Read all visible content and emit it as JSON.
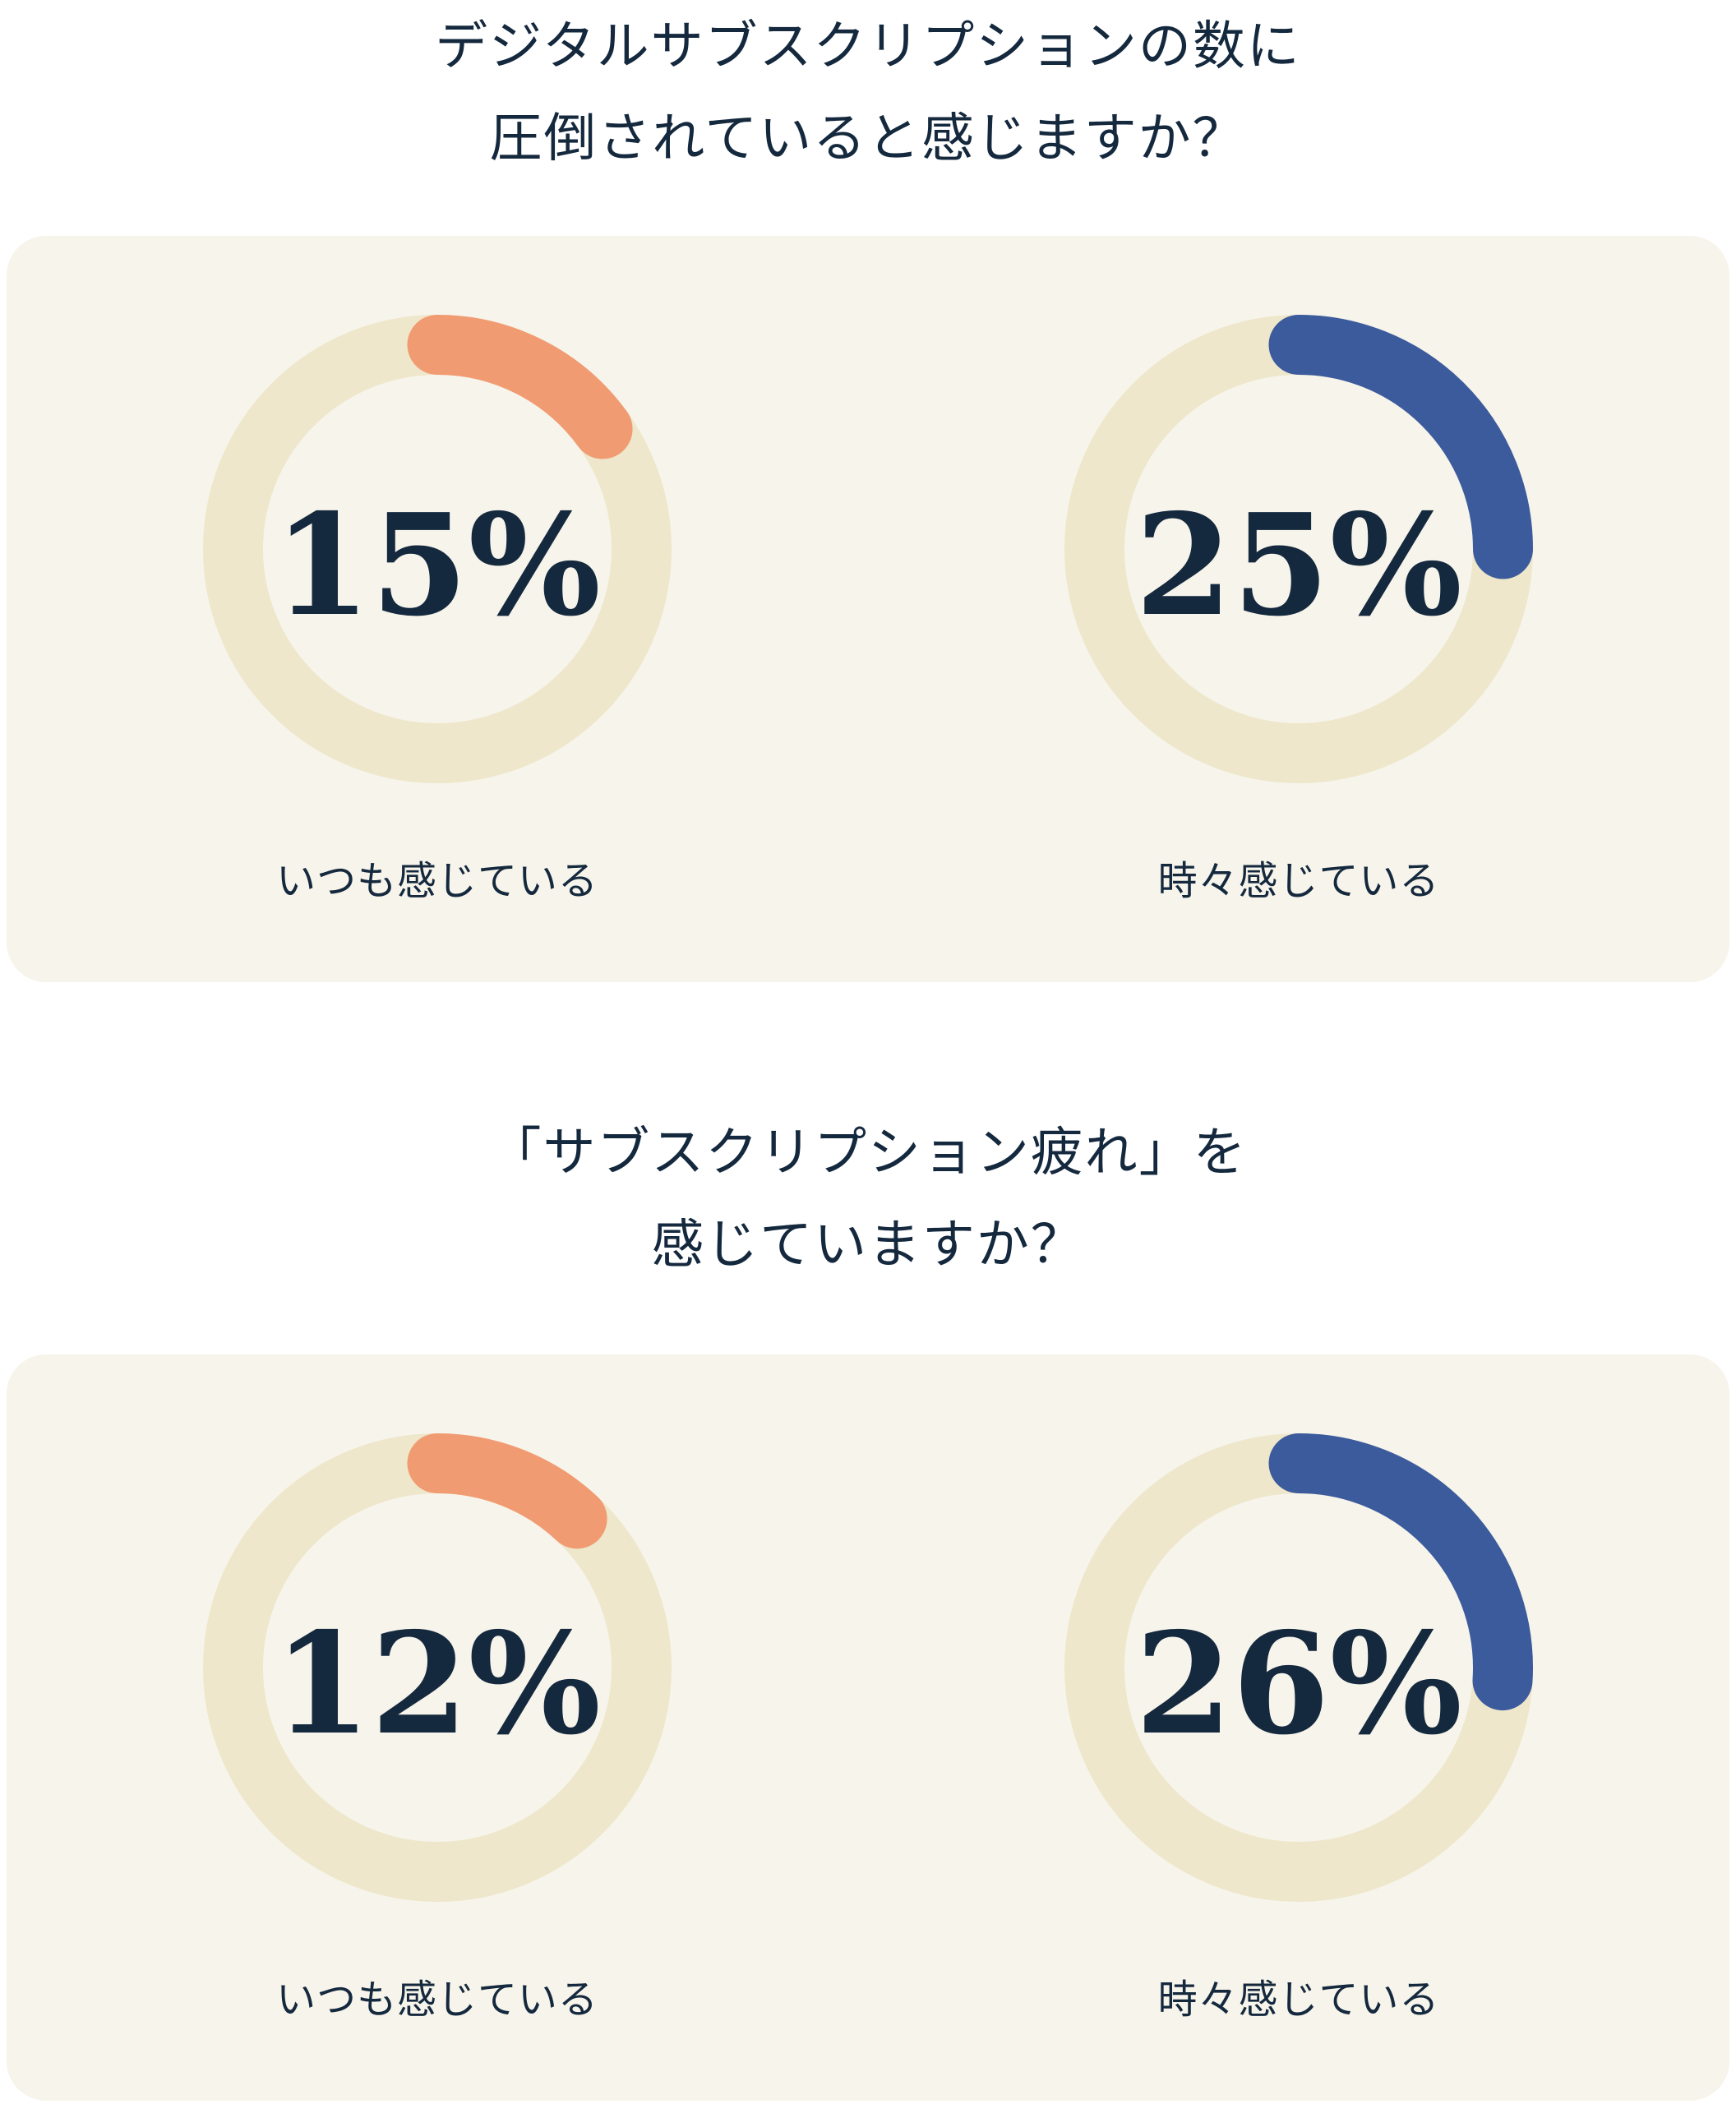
{
  "colors": {
    "page_bg": "#ffffff",
    "card_bg": "#f7f4eb",
    "track": "#eee7cb",
    "accent_orange": "#f19b72",
    "accent_blue": "#3c5b9d",
    "text_navy": "#15293e"
  },
  "chart_data": [
    {
      "type": "pie",
      "variant": "donut-gauge-pair",
      "title": "デジタルサブスクリプションの数に圧倒されていると感じますか？",
      "title_lines": [
        "デジタルサブスクリプションの数に",
        "圧倒されていると感じますか？"
      ],
      "unit": "%",
      "start_angle": "top",
      "direction": "clockwise",
      "values": [
        {
          "label": "いつも感じている",
          "value": 15,
          "display": "15%",
          "color": "#f19b72"
        },
        {
          "label": "時々感じている",
          "value": 25,
          "display": "25%",
          "color": "#3c5b9d"
        }
      ]
    },
    {
      "type": "pie",
      "variant": "donut-gauge-pair",
      "title": "「サブスクリプション疲れ」を感じていますか？",
      "title_lines": [
        "「サブスクリプション疲れ」を",
        "感じていますか？"
      ],
      "unit": "%",
      "start_angle": "top",
      "direction": "clockwise",
      "values": [
        {
          "label": "いつも感じている",
          "value": 12,
          "display": "12%",
          "color": "#f19b72"
        },
        {
          "label": "時々感じている",
          "value": 26,
          "display": "26%",
          "color": "#3c5b9d"
        }
      ]
    }
  ]
}
